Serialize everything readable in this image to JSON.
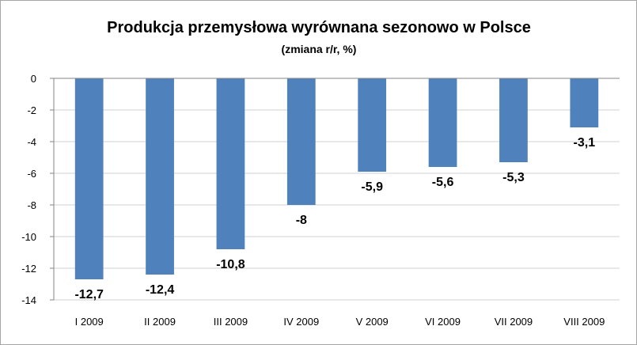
{
  "chart_data": {
    "type": "bar",
    "title": "Produkcja przemysłowa wyrównana sezonowo w Polsce",
    "subtitle": "(zmiana r/r, %)",
    "categories": [
      "I 2009",
      "II 2009",
      "III 2009",
      "IV 2009",
      "V 2009",
      "VI 2009",
      "VII 2009",
      "VIII 2009"
    ],
    "values": [
      -12.7,
      -12.4,
      -10.8,
      -8,
      -5.9,
      -5.6,
      -5.3,
      -3.1
    ],
    "value_labels": [
      "-12,7",
      "-12,4",
      "-10,8",
      "-8",
      "-5,9",
      "-5,6",
      "-5,3",
      "-3,1"
    ],
    "y_ticks": [
      0,
      -2,
      -4,
      -6,
      -8,
      -10,
      -12,
      -14
    ],
    "y_tick_labels": [
      "0",
      "-2",
      "-4",
      "-6",
      "-8",
      "-10",
      "-12",
      "-14"
    ],
    "ylim": [
      -14,
      0
    ],
    "grid": true,
    "legend": "none",
    "bar_color": "#4f81bd"
  }
}
